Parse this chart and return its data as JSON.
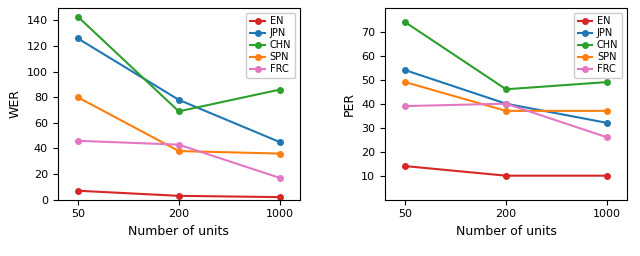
{
  "x": [
    50,
    200,
    1000
  ],
  "wer": {
    "EN": [
      7,
      3,
      2
    ],
    "JPN": [
      126,
      78,
      45
    ],
    "CHN": [
      143,
      69,
      86
    ],
    "SPN": [
      80,
      38,
      36
    ],
    "FRC": [
      46,
      43,
      17
    ]
  },
  "per": {
    "EN": [
      14,
      10,
      10
    ],
    "JPN": [
      54,
      40,
      32
    ],
    "CHN": [
      74,
      46,
      49
    ],
    "SPN": [
      49,
      37,
      37
    ],
    "FRC": [
      39,
      40,
      26
    ]
  },
  "colors": {
    "EN": "#d62728",
    "JPN": "#1f77b4",
    "CHN": "#2ca02c",
    "SPN": "#ff7f0e",
    "FRC": "#e377c2"
  },
  "wer_ylabel": "WER",
  "per_ylabel": "PER",
  "xlabel": "Number of units",
  "wer_ylim": [
    0,
    150
  ],
  "per_ylim": [
    0,
    80
  ],
  "wer_yticks": [
    0,
    20,
    40,
    60,
    80,
    100,
    120,
    140
  ],
  "per_yticks": [
    10,
    20,
    30,
    40,
    50,
    60,
    70
  ],
  "xticks": [
    50,
    200,
    1000
  ],
  "series": [
    "EN",
    "JPN",
    "CHN",
    "SPN",
    "FRC"
  ]
}
